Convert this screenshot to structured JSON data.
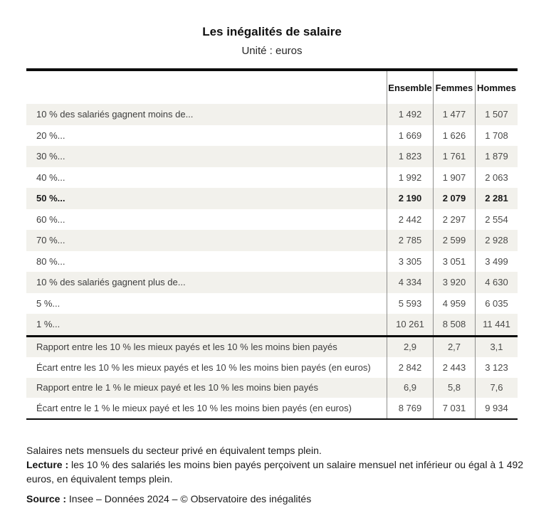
{
  "chart_data": {
    "type": "table",
    "title": "Les inégalités de salaire",
    "subtitle": "Unité : euros",
    "columns": [
      "Ensemble",
      "Femmes",
      "Hommes"
    ],
    "rows": [
      {
        "label": "10 % des salariés gagnent moins de...",
        "values": [
          "1 492",
          "1 477",
          "1 507"
        ],
        "emphasis": false
      },
      {
        "label": "20 %...",
        "values": [
          "1 669",
          "1 626",
          "1 708"
        ],
        "emphasis": false
      },
      {
        "label": "30 %...",
        "values": [
          "1 823",
          "1 761",
          "1 879"
        ],
        "emphasis": false
      },
      {
        "label": "40 %...",
        "values": [
          "1 992",
          "1 907",
          "2 063"
        ],
        "emphasis": false
      },
      {
        "label": "50 %...",
        "values": [
          "2 190",
          "2 079",
          "2 281"
        ],
        "emphasis": true
      },
      {
        "label": "60 %...",
        "values": [
          "2 442",
          "2 297",
          "2 554"
        ],
        "emphasis": false
      },
      {
        "label": "70 %...",
        "values": [
          "2 785",
          "2 599",
          "2 928"
        ],
        "emphasis": false
      },
      {
        "label": "80 %...",
        "values": [
          "3 305",
          "3 051",
          "3 499"
        ],
        "emphasis": false
      },
      {
        "label": "10 % des salariés gagnent plus de...",
        "values": [
          "4 334",
          "3 920",
          "4 630"
        ],
        "emphasis": false
      },
      {
        "label": "5 %...",
        "values": [
          "5 593",
          "4 959",
          "6 035"
        ],
        "emphasis": false
      },
      {
        "label": "1 %...",
        "values": [
          "10 261",
          "8 508",
          "11 441"
        ],
        "emphasis": false
      }
    ],
    "summary_rows": [
      {
        "label": "Rapport entre les 10 % les mieux payés et les 10 % les moins bien payés",
        "values": [
          "2,9",
          "2,7",
          "3,1"
        ],
        "emphasis": false
      },
      {
        "label": "Écart entre les 10 % les mieux payés et les 10 % les moins bien payés (en euros)",
        "values": [
          "2 842",
          "2 443",
          "3 123"
        ],
        "emphasis": false
      },
      {
        "label": "Rapport entre le 1 % le mieux payé et les 10 % les moins bien payés",
        "values": [
          "6,9",
          "5,8",
          "7,6"
        ],
        "emphasis": false
      },
      {
        "label": "Écart entre le 1 % le mieux payé et les 10 % les moins bien payés (en euros)",
        "values": [
          "8 769",
          "7 031",
          "9 934"
        ],
        "emphasis": false
      }
    ],
    "notes": {
      "line1": "Salaires nets mensuels du secteur privé en équivalent temps plein.",
      "lecture_label": "Lecture :",
      "lecture_text": " les 10 % des salariés les moins bien payés perçoivent un salaire mensuel net inférieur ou égal à 1 492 euros, en équivalent temps plein.",
      "source_label": "Source :",
      "source_text": " Insee – Données 2024 – © Observatoire des inégalités"
    },
    "layout": {
      "legend_position": "none",
      "grid": "row-stripes",
      "colors": {
        "row_stripe": "#f2f1ec",
        "heavy_rule": "#0c0c0c",
        "column_divider": "#8f8f8d",
        "text": "#3d3d3d"
      }
    }
  }
}
